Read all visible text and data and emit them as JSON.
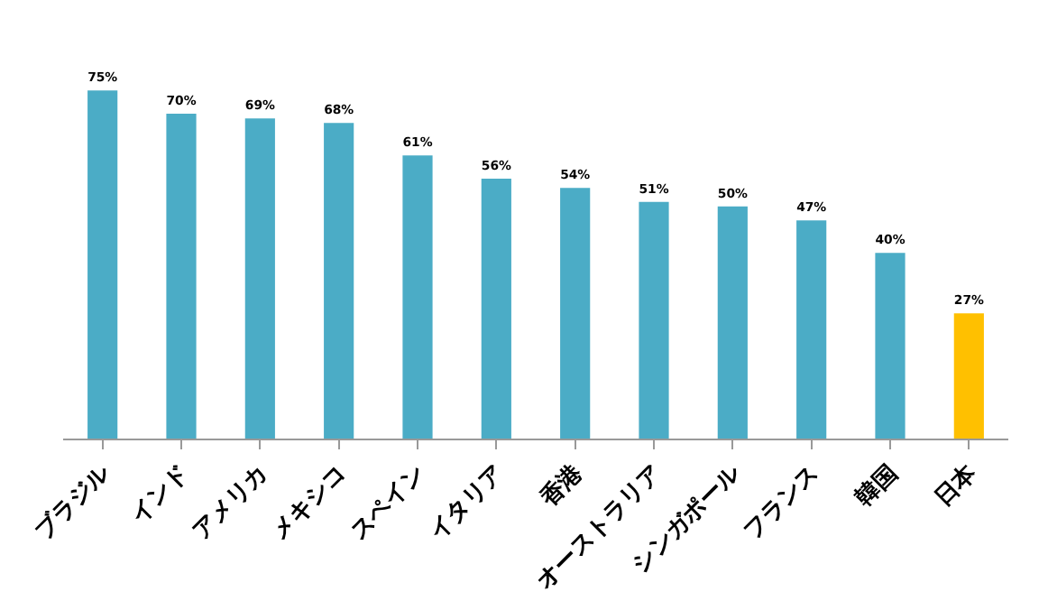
{
  "chart_data": {
    "type": "bar",
    "categories": [
      "ブラジル",
      "インド",
      "アメリカ",
      "メキシコ",
      "スペイン",
      "イタリア",
      "香港",
      "オーストラリア",
      "シンガポール",
      "フランス",
      "韓国",
      "日本"
    ],
    "values": [
      75,
      70,
      69,
      68,
      61,
      56,
      54,
      51,
      50,
      47,
      40,
      27
    ],
    "colors": [
      "#4bacc6",
      "#4bacc6",
      "#4bacc6",
      "#4bacc6",
      "#4bacc6",
      "#4bacc6",
      "#4bacc6",
      "#4bacc6",
      "#4bacc6",
      "#4bacc6",
      "#4bacc6",
      "#ffc000"
    ],
    "value_labels": [
      "75%",
      "70%",
      "69%",
      "68%",
      "61%",
      "56%",
      "54%",
      "51%",
      "50%",
      "47%",
      "40%",
      "27%"
    ]
  }
}
